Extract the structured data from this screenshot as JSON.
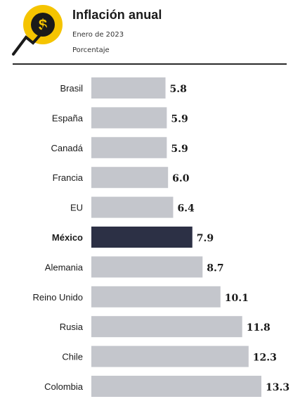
{
  "header": {
    "title": "Inflación anual",
    "subtitle_date": "Enero de 2023",
    "subtitle_unit": "Porcentaje",
    "logo_icon": "dollar-coin-growth-icon",
    "logo_symbol": "$"
  },
  "colors": {
    "bar": "#c4c6cc",
    "highlight": "#2c3045",
    "accent_yellow": "#f5c400",
    "text": "#1a1a1a"
  },
  "chart_data": {
    "type": "bar",
    "orientation": "horizontal",
    "title": "Inflación anual",
    "subtitle": "Enero de 2023",
    "unit": "Porcentaje",
    "categories": [
      "Brasil",
      "España",
      "Canadá",
      "Francia",
      "EU",
      "México",
      "Alemania",
      "Reino Unido",
      "Rusia",
      "Chile",
      "Colombia"
    ],
    "values": [
      5.8,
      5.9,
      5.9,
      6.0,
      6.4,
      7.9,
      8.7,
      10.1,
      11.8,
      12.3,
      13.3
    ],
    "value_labels": [
      "5.8",
      "5.9",
      "5.9",
      "6.0",
      "6.4",
      "7.9",
      "8.7",
      "10.1",
      "11.8",
      "12.3",
      "13.3"
    ],
    "highlighted_category": "México",
    "xlim": [
      0,
      13.3
    ],
    "grid": false,
    "legend": "none"
  }
}
